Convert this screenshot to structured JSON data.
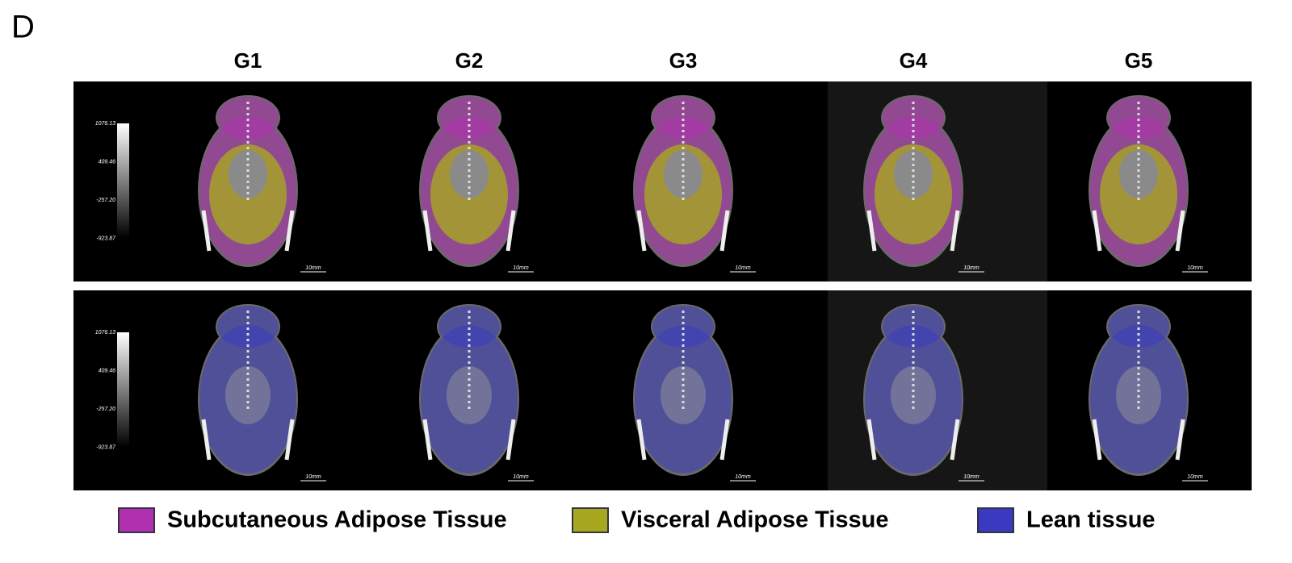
{
  "panel_label": "D",
  "columns": [
    "G1",
    "G2",
    "G3",
    "G4",
    "G5"
  ],
  "rows": [
    {
      "colorbar": [
        "1076.13",
        "409.46",
        "-257.20",
        "-923.87"
      ],
      "scale_bars": [
        "10mm",
        "10mm",
        "10mm",
        "10mm",
        "10mm"
      ]
    },
    {
      "colorbar": [
        "1076.13",
        "409.46",
        "-257.20",
        "-923.87"
      ],
      "scale_bars": [
        "10mm",
        "10mm",
        "10mm",
        "10mm",
        "10mm"
      ]
    }
  ],
  "legend": [
    {
      "label": "Subcutaneous Adipose Tissue",
      "color": "#b030b0"
    },
    {
      "label": "Visceral Adipose Tissue",
      "color": "#a8a820"
    },
    {
      "label": "Lean tissue",
      "color": "#3a3ac0"
    }
  ]
}
